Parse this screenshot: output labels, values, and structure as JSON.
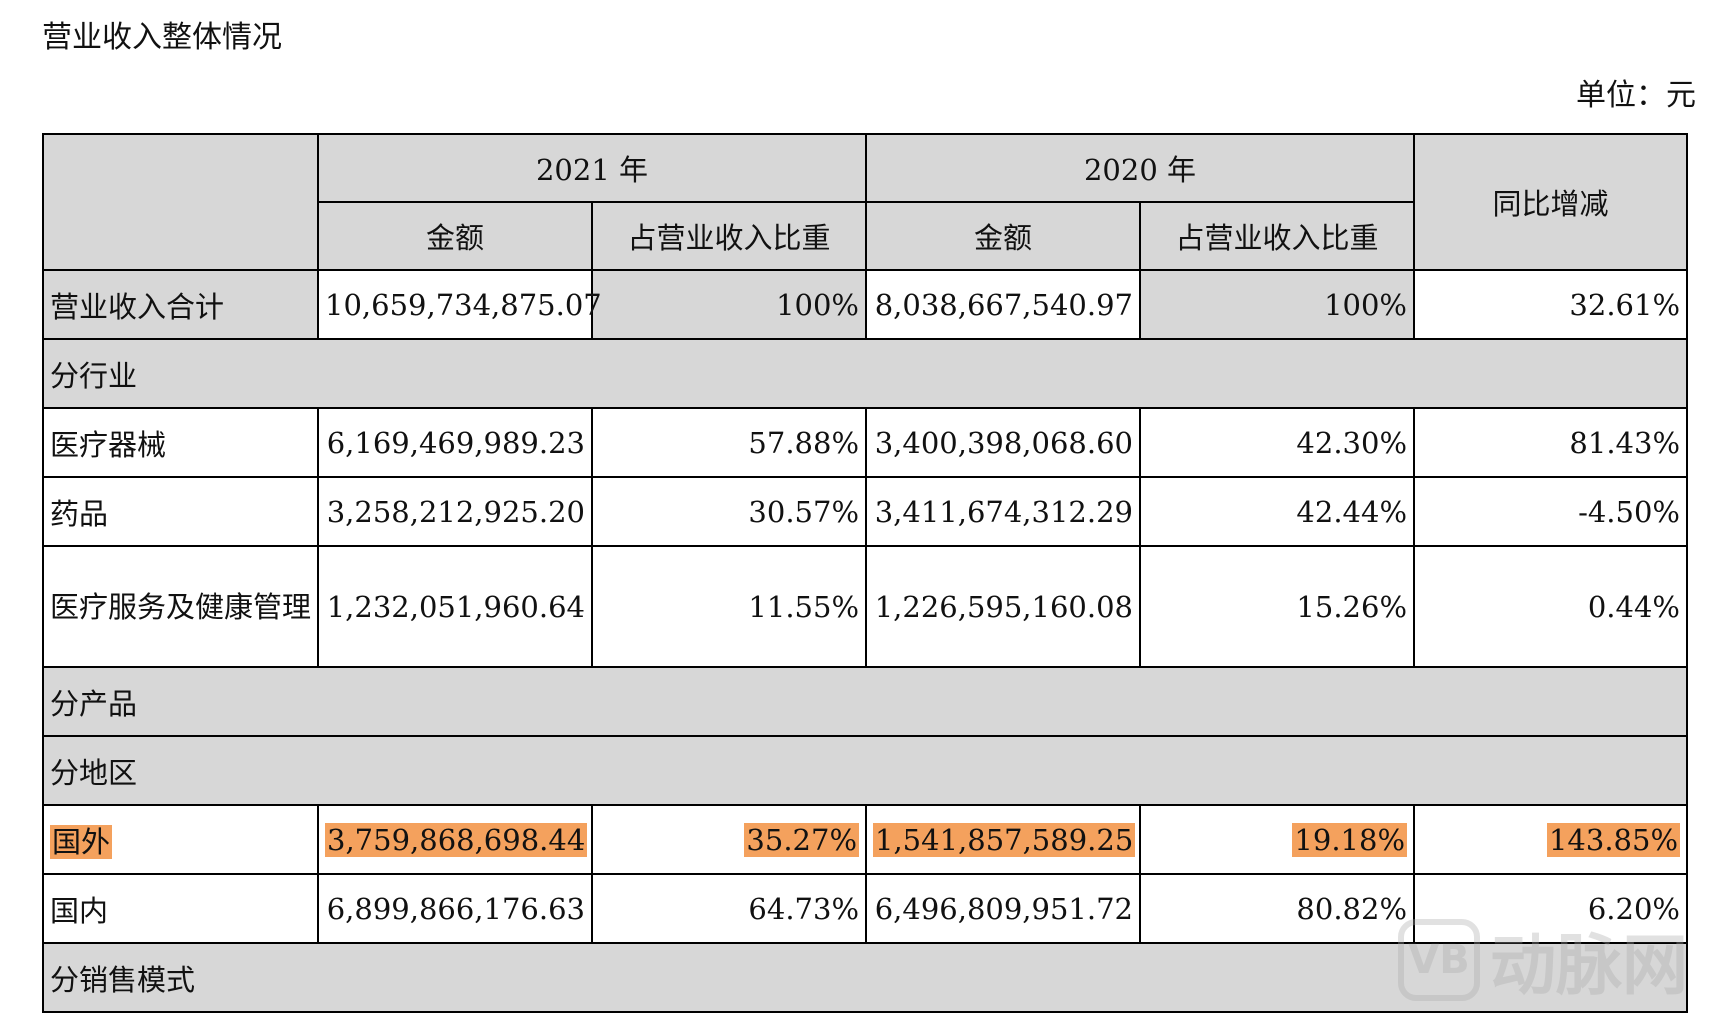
{
  "title": "营业收入整体情况",
  "unit": "单位：元",
  "headers": {
    "year_2021": "2021 年",
    "year_2020": "2020 年",
    "yoy": "同比增减",
    "amount": "金额",
    "share": "占营业收入比重"
  },
  "total": {
    "label": "营业收入合计",
    "amt21": "10,659,734,875.07",
    "pct21": "100%",
    "amt20": "8,038,667,540.97",
    "pct20": "100%",
    "yoy": "32.61%"
  },
  "sections": {
    "industry": "分行业",
    "product": "分产品",
    "region": "分地区",
    "sales_mode": "分销售模式"
  },
  "industry_rows": [
    {
      "label": "医疗器械",
      "amt21": "6,169,469,989.23",
      "pct21": "57.88%",
      "amt20": "3,400,398,068.60",
      "pct20": "42.30%",
      "yoy": "81.43%"
    },
    {
      "label": "药品",
      "amt21": "3,258,212,925.20",
      "pct21": "30.57%",
      "amt20": "3,411,674,312.29",
      "pct20": "42.44%",
      "yoy": "-4.50%"
    },
    {
      "label": "医疗服务及健康管理",
      "amt21": "1,232,051,960.64",
      "pct21": "11.55%",
      "amt20": "1,226,595,160.08",
      "pct20": "15.26%",
      "yoy": "0.44%"
    }
  ],
  "region_rows": [
    {
      "label": "国外",
      "amt21": "3,759,868,698.44",
      "pct21": "35.27%",
      "amt20": "1,541,857,589.25",
      "pct20": "19.18%",
      "yoy": "143.85%"
    },
    {
      "label": "国内",
      "amt21": "6,899,866,176.63",
      "pct21": "64.73%",
      "amt20": "6,496,809,951.72",
      "pct20": "80.82%",
      "yoy": "6.20%"
    }
  ],
  "colors": {
    "header_bg": "#d7d7d7",
    "highlight": "#f4a15d",
    "border": "#000000"
  },
  "watermark": {
    "logo": "VB",
    "text": "动脉网"
  }
}
